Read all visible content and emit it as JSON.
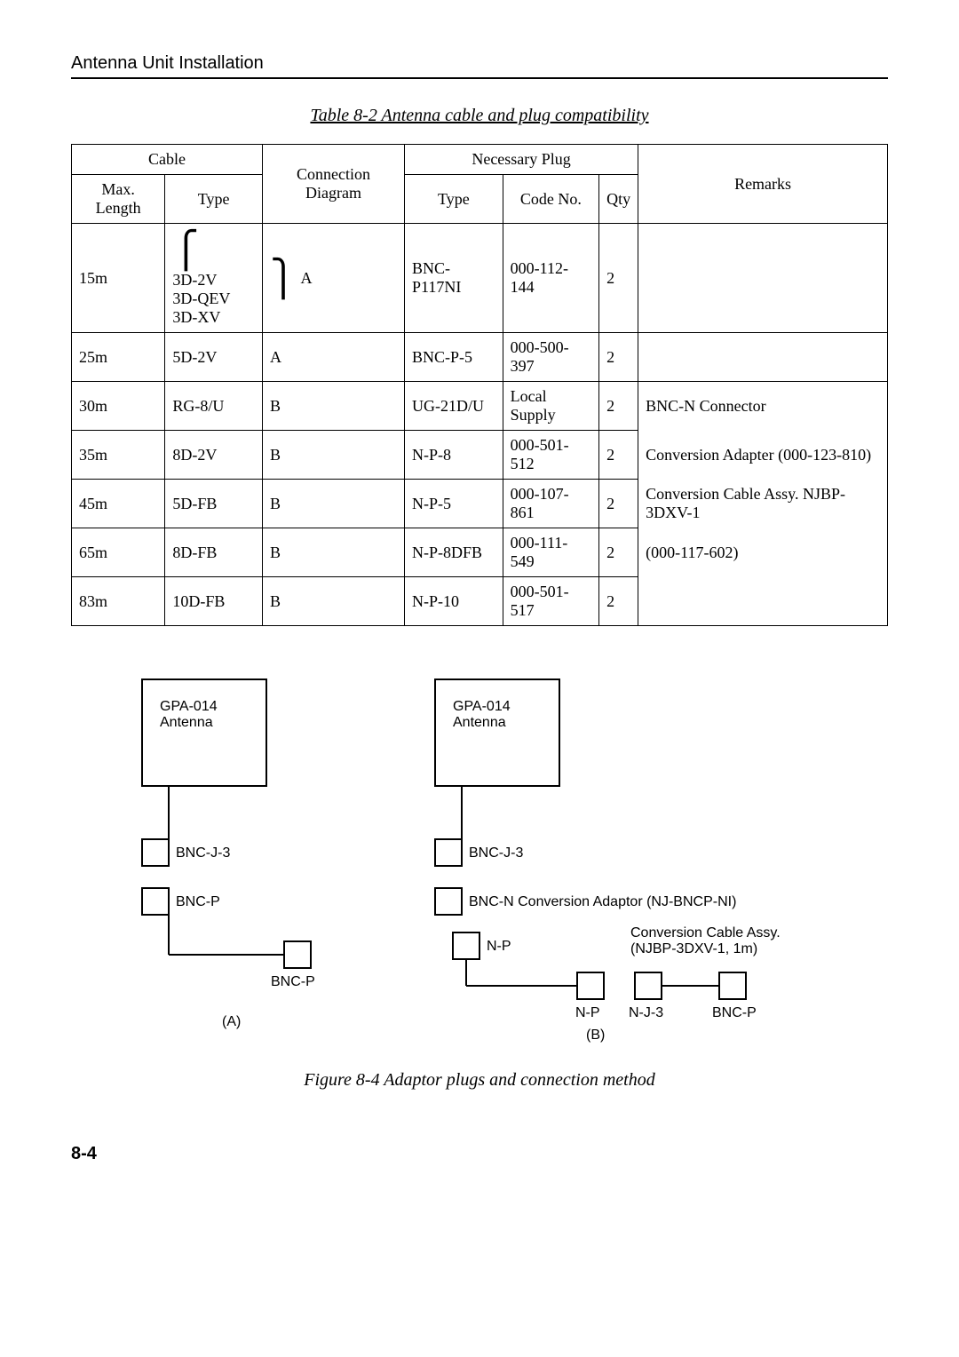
{
  "header": {
    "title": "Antenna Unit Installation"
  },
  "table": {
    "caption": "Table 8-2 Antenna cable and plug compatibility",
    "head": {
      "cable": "Cable",
      "connection": "Connection Diagram",
      "necessary": "Necessary Plug",
      "remarks": "Remarks",
      "maxlen": "Max. Length",
      "ctype": "Type",
      "ptype": "Type",
      "codeno": "Code No.",
      "qty": "Qty"
    },
    "rows": [
      {
        "len": "15m",
        "ctype_multi": [
          "3D-2V",
          "3D-QEV",
          "3D-XV"
        ],
        "conn": "A",
        "ptype": "BNC-P117NI",
        "code": "000-112-144",
        "qty": "2",
        "remark": ""
      },
      {
        "len": "25m",
        "ctype": "5D-2V",
        "conn": "A",
        "ptype": "BNC-P-5",
        "code": "000-500-397",
        "qty": "2",
        "remark": ""
      },
      {
        "len": "30m",
        "ctype": "RG-8/U",
        "conn": "B",
        "ptype": "UG-21D/U",
        "code": "Local Supply",
        "qty": "2",
        "remark": "BNC-N Connector"
      },
      {
        "len": "35m",
        "ctype": "8D-2V",
        "conn": "B",
        "ptype": "N-P-8",
        "code": "000-501-512",
        "qty": "2",
        "remark": "Conversion Adapter (000-123-810)"
      },
      {
        "len": "45m",
        "ctype": "5D-FB",
        "conn": "B",
        "ptype": "N-P-5",
        "code": "000-107-861",
        "qty": "2",
        "remark": "Conversion Cable Assy. NJBP-3DXV-1"
      },
      {
        "len": "65m",
        "ctype": "8D-FB",
        "conn": "B",
        "ptype": "N-P-8DFB",
        "code": "000-111-549",
        "qty": "2",
        "remark": "(000-117-602)"
      },
      {
        "len": "83m",
        "ctype": "10D-FB",
        "conn": "B",
        "ptype": "N-P-10",
        "code": "000-501-517",
        "qty": "2",
        "remark": ""
      }
    ]
  },
  "diagram": {
    "labels": {
      "gpa": "GPA-014\nAntenna",
      "bncj3": "BNC-J-3",
      "bncp": "BNC-P",
      "bncn_conv": "BNC-N Conversion Adaptor (NJ-BNCP-NI)",
      "np": "N-P",
      "conv_cable": "Conversion Cable Assy.\n(NJBP-3DXV-1, 1m)",
      "nj3": "N-J-3",
      "a": "(A)",
      "b": "(B)"
    },
    "caption": "Figure 8-4 Adaptor plugs and connection method"
  },
  "pagenum": "8-4"
}
